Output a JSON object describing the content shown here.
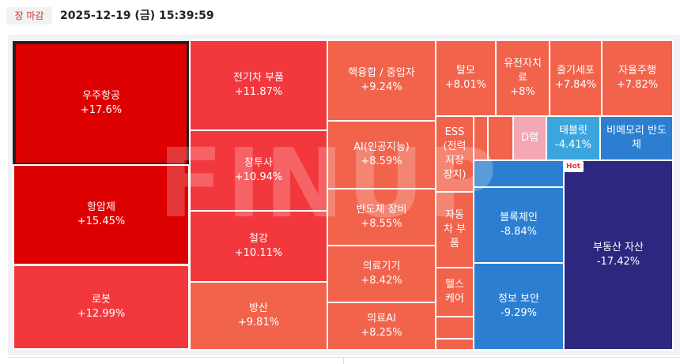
{
  "header": {
    "badge": "장 마감",
    "timestamp": "2025-12-19 (금) 15:39:59"
  },
  "watermark": "FINUP",
  "hot_label": "Hot",
  "tiles": [
    {
      "name": "우주항공",
      "change": "+17.6%",
      "color": "#dd0000"
    },
    {
      "name": "항암제",
      "change": "+15.45%",
      "color": "#dd0000"
    },
    {
      "name": "로봇",
      "change": "+12.99%",
      "color": "#f2383d"
    },
    {
      "name": "전기차 부품",
      "change": "+11.87%",
      "color": "#f2383d"
    },
    {
      "name": "창투사",
      "change": "+10.94%",
      "color": "#f2383d"
    },
    {
      "name": "철강",
      "change": "+10.11%",
      "color": "#f2383d"
    },
    {
      "name": "방산",
      "change": "+9.81%",
      "color": "#f2634c"
    },
    {
      "name": "핵융합 / 중입자",
      "change": "+9.24%",
      "color": "#f2634c"
    },
    {
      "name": "AI(인공지능)",
      "change": "+8.59%",
      "color": "#f2634c"
    },
    {
      "name": "반도체 장비",
      "change": "+8.55%",
      "color": "#f2634c"
    },
    {
      "name": "의료기기",
      "change": "+8.42%",
      "color": "#f2634c"
    },
    {
      "name": "의료AI",
      "change": "+8.25%",
      "color": "#f2634c"
    },
    {
      "name": "탈모",
      "change": "+8.01%",
      "color": "#f2634c"
    },
    {
      "name": "유전자치\n료",
      "change": "+8%",
      "color": "#f2634c"
    },
    {
      "name": "줄기세포",
      "change": "+7.84%",
      "color": "#f2634c"
    },
    {
      "name": "자율주행",
      "change": "+7.82%",
      "color": "#f2634c"
    },
    {
      "name": "ESS\n(전력\n저장\n장치)",
      "change": "",
      "color": "#f2634c"
    },
    {
      "name": "자동\n차 부\n품",
      "change": "",
      "color": "#f2634c"
    },
    {
      "name": "헬스\n케어",
      "change": "",
      "color": "#f2634c"
    },
    {
      "name": "",
      "change": "",
      "color": "#f2634c"
    },
    {
      "name": "",
      "change": "",
      "color": "#f2634c"
    },
    {
      "name": "",
      "change": "",
      "color": "#f2634c"
    },
    {
      "name": "",
      "change": "",
      "color": "#f2634c"
    },
    {
      "name": "D램",
      "change": "",
      "color": "#f4a7b4"
    },
    {
      "name": "태블릿",
      "change": "-4.41%",
      "color": "#3ba6de"
    },
    {
      "name": "비메모리 반도\n체",
      "change": "",
      "color": "#2c7fd0"
    },
    {
      "name": "",
      "change": "",
      "color": "#2c7fd0"
    },
    {
      "name": "블록체인",
      "change": "-8.84%",
      "color": "#2c7fd0"
    },
    {
      "name": "정보 보안",
      "change": "-9.29%",
      "color": "#2c7fd0"
    },
    {
      "name": "부동산 자산",
      "change": "-17.42%",
      "color": "#2c2880"
    }
  ]
}
